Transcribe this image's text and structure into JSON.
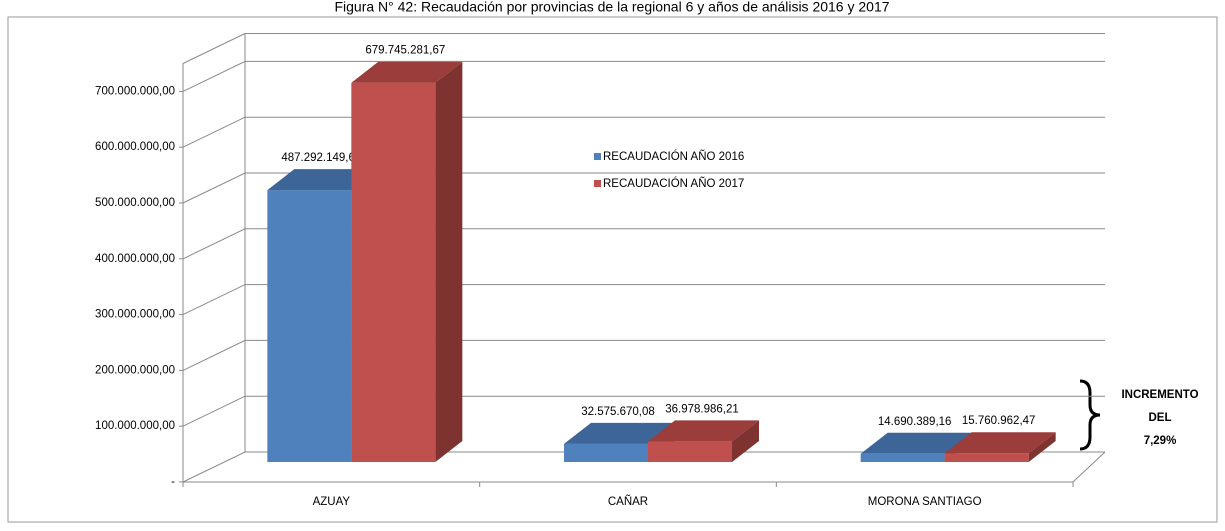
{
  "chart_data": {
    "type": "bar3d",
    "title": "Figura N° 42: Recaudación por provincias de la regional 6 y años de análisis 2016 y 2017",
    "categories": [
      "AZUAY",
      "CAÑAR",
      "MORONA SANTIAGO"
    ],
    "series": [
      {
        "name": "RECAUDACIÓN AÑO 2016",
        "color": "#4f81bd",
        "side_color": "#3a6190",
        "top_color": "#3d6597",
        "values": [
          487292149.66,
          32575670.08,
          14690389.16
        ],
        "value_labels": [
          "487.292.149,66",
          "32.575.670,08",
          "14.690.389,16"
        ]
      },
      {
        "name": "RECAUDACIÓN AÑO 2017",
        "color": "#c0504d",
        "side_color": "#7e3330",
        "top_color": "#9b3d3a",
        "values": [
          679745281.67,
          36978986.21,
          15760962.47
        ],
        "value_labels": [
          "679.745.281,67",
          "36.978.986,21",
          "15.760.962,47"
        ]
      }
    ],
    "ylim": [
      0,
      750000000
    ],
    "yticks": [
      {
        "value": 0,
        "label": "-"
      },
      {
        "value": 100000000,
        "label": "100.000.000,00"
      },
      {
        "value": 200000000,
        "label": "200.000.000,00"
      },
      {
        "value": 300000000,
        "label": "300.000.000,00"
      },
      {
        "value": 400000000,
        "label": "400.000.000,00"
      },
      {
        "value": 500000000,
        "label": "500.000.000,00"
      },
      {
        "value": 600000000,
        "label": "600.000.000,00"
      },
      {
        "value": 700000000,
        "label": "700.000.000,00"
      }
    ],
    "grid": true,
    "annotation": [
      "INCREMENTO",
      "DEL",
      "7,29%"
    ]
  }
}
